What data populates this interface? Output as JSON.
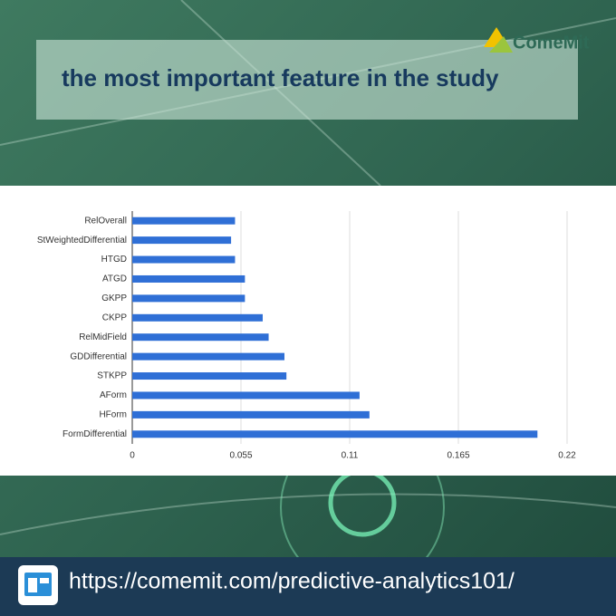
{
  "header": {
    "title": "the most important feature in the study",
    "brand": "ComeMit"
  },
  "footer": {
    "url": "https://comemit.com/predictive-analytics101/"
  },
  "chart_data": {
    "type": "bar",
    "orientation": "horizontal",
    "categories": [
      "RelOverall",
      "StWeightedDifferential",
      "HTGD",
      "ATGD",
      "GKPP",
      "CKPP",
      "RelMidField",
      "GDDifferential",
      "STKPP",
      "AForm",
      "HForm",
      "FormDifferential"
    ],
    "values": [
      0.052,
      0.05,
      0.052,
      0.057,
      0.057,
      0.066,
      0.069,
      0.077,
      0.078,
      0.115,
      0.12,
      0.205
    ],
    "color": "#2f6fd6",
    "xlim": [
      0,
      0.22
    ],
    "xticks": [
      0,
      0.055,
      0.11,
      0.165,
      0.22
    ],
    "grid": true
  }
}
